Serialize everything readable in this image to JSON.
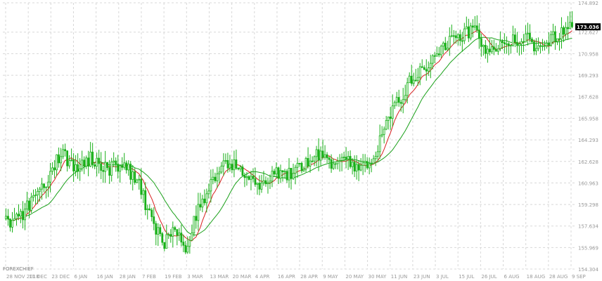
{
  "brand_label": "FOREXCHIEF",
  "colors": {
    "background": "#ffffff",
    "grid": "#d8d8d8",
    "candle": "#19b019",
    "ma_fast": "#d81e1e",
    "ma_slow": "#19a019",
    "axis_text": "#9a9a9a",
    "price_box": "#000000"
  },
  "chart_data": {
    "type": "candlestick",
    "title": "",
    "xlabel": "",
    "ylabel": "",
    "ylim": [
      154.304,
      174.892
    ],
    "grid": true,
    "y_ticks": [
      "174.892",
      "172.627",
      "170.958",
      "169.293",
      "167.628",
      "165.958",
      "164.293",
      "162.628",
      "160.963",
      "159.298",
      "157.634",
      "155.969",
      "154.304"
    ],
    "x_ticks": [
      "28 NOV 2018",
      "11 DEC",
      "23 DEC",
      "6 JAN",
      "16 JAN",
      "28 JAN",
      "7 FEB",
      "19 FEB",
      "3 MAR",
      "13 MAR",
      "20 MAR",
      "4 APR",
      "16 APR",
      "28 APR",
      "9 MAY",
      "20 MAY",
      "30 MAY",
      "11 JUN",
      "23 JUN",
      "3 JUL",
      "15 JUL",
      "26 JUL",
      "6 AUG",
      "18 AUG",
      "28 AUG",
      "9 SEP"
    ],
    "current_price": "173.036",
    "anchors": [
      {
        "i": 0,
        "v": 157.9
      },
      {
        "i": 7,
        "v": 158.3
      },
      {
        "i": 14,
        "v": 160.2
      },
      {
        "i": 20,
        "v": 161.3
      },
      {
        "i": 26,
        "v": 163.3
      },
      {
        "i": 33,
        "v": 162.2
      },
      {
        "i": 40,
        "v": 162.9
      },
      {
        "i": 48,
        "v": 162.0
      },
      {
        "i": 55,
        "v": 162.5
      },
      {
        "i": 62,
        "v": 161.2
      },
      {
        "i": 68,
        "v": 158.5
      },
      {
        "i": 74,
        "v": 156.3
      },
      {
        "i": 81,
        "v": 157.3
      },
      {
        "i": 86,
        "v": 155.7
      },
      {
        "i": 91,
        "v": 159.3
      },
      {
        "i": 96,
        "v": 160.3
      },
      {
        "i": 102,
        "v": 162.6
      },
      {
        "i": 108,
        "v": 162.4
      },
      {
        "i": 114,
        "v": 161.6
      },
      {
        "i": 120,
        "v": 160.6
      },
      {
        "i": 126,
        "v": 161.8
      },
      {
        "i": 132,
        "v": 161.4
      },
      {
        "i": 138,
        "v": 162.0
      },
      {
        "i": 144,
        "v": 162.6
      },
      {
        "i": 150,
        "v": 163.4
      },
      {
        "i": 156,
        "v": 162.2
      },
      {
        "i": 162,
        "v": 162.8
      },
      {
        "i": 168,
        "v": 162.0
      },
      {
        "i": 174,
        "v": 163.0
      },
      {
        "i": 180,
        "v": 165.7
      },
      {
        "i": 186,
        "v": 167.3
      },
      {
        "i": 192,
        "v": 169.1
      },
      {
        "i": 198,
        "v": 169.6
      },
      {
        "i": 204,
        "v": 171.1
      },
      {
        "i": 210,
        "v": 172.0
      },
      {
        "i": 216,
        "v": 172.4
      },
      {
        "i": 222,
        "v": 172.9
      },
      {
        "i": 228,
        "v": 170.8
      },
      {
        "i": 234,
        "v": 171.6
      },
      {
        "i": 240,
        "v": 171.9
      },
      {
        "i": 246,
        "v": 172.2
      },
      {
        "i": 252,
        "v": 171.2
      },
      {
        "i": 258,
        "v": 172.0
      },
      {
        "i": 264,
        "v": 172.7
      },
      {
        "i": 268,
        "v": 173.036
      }
    ],
    "series": [
      {
        "name": "",
        "kind": "candles"
      },
      {
        "name": "",
        "kind": "moving-average",
        "period": 8
      },
      {
        "name": "",
        "kind": "moving-average",
        "period": 21
      }
    ]
  }
}
